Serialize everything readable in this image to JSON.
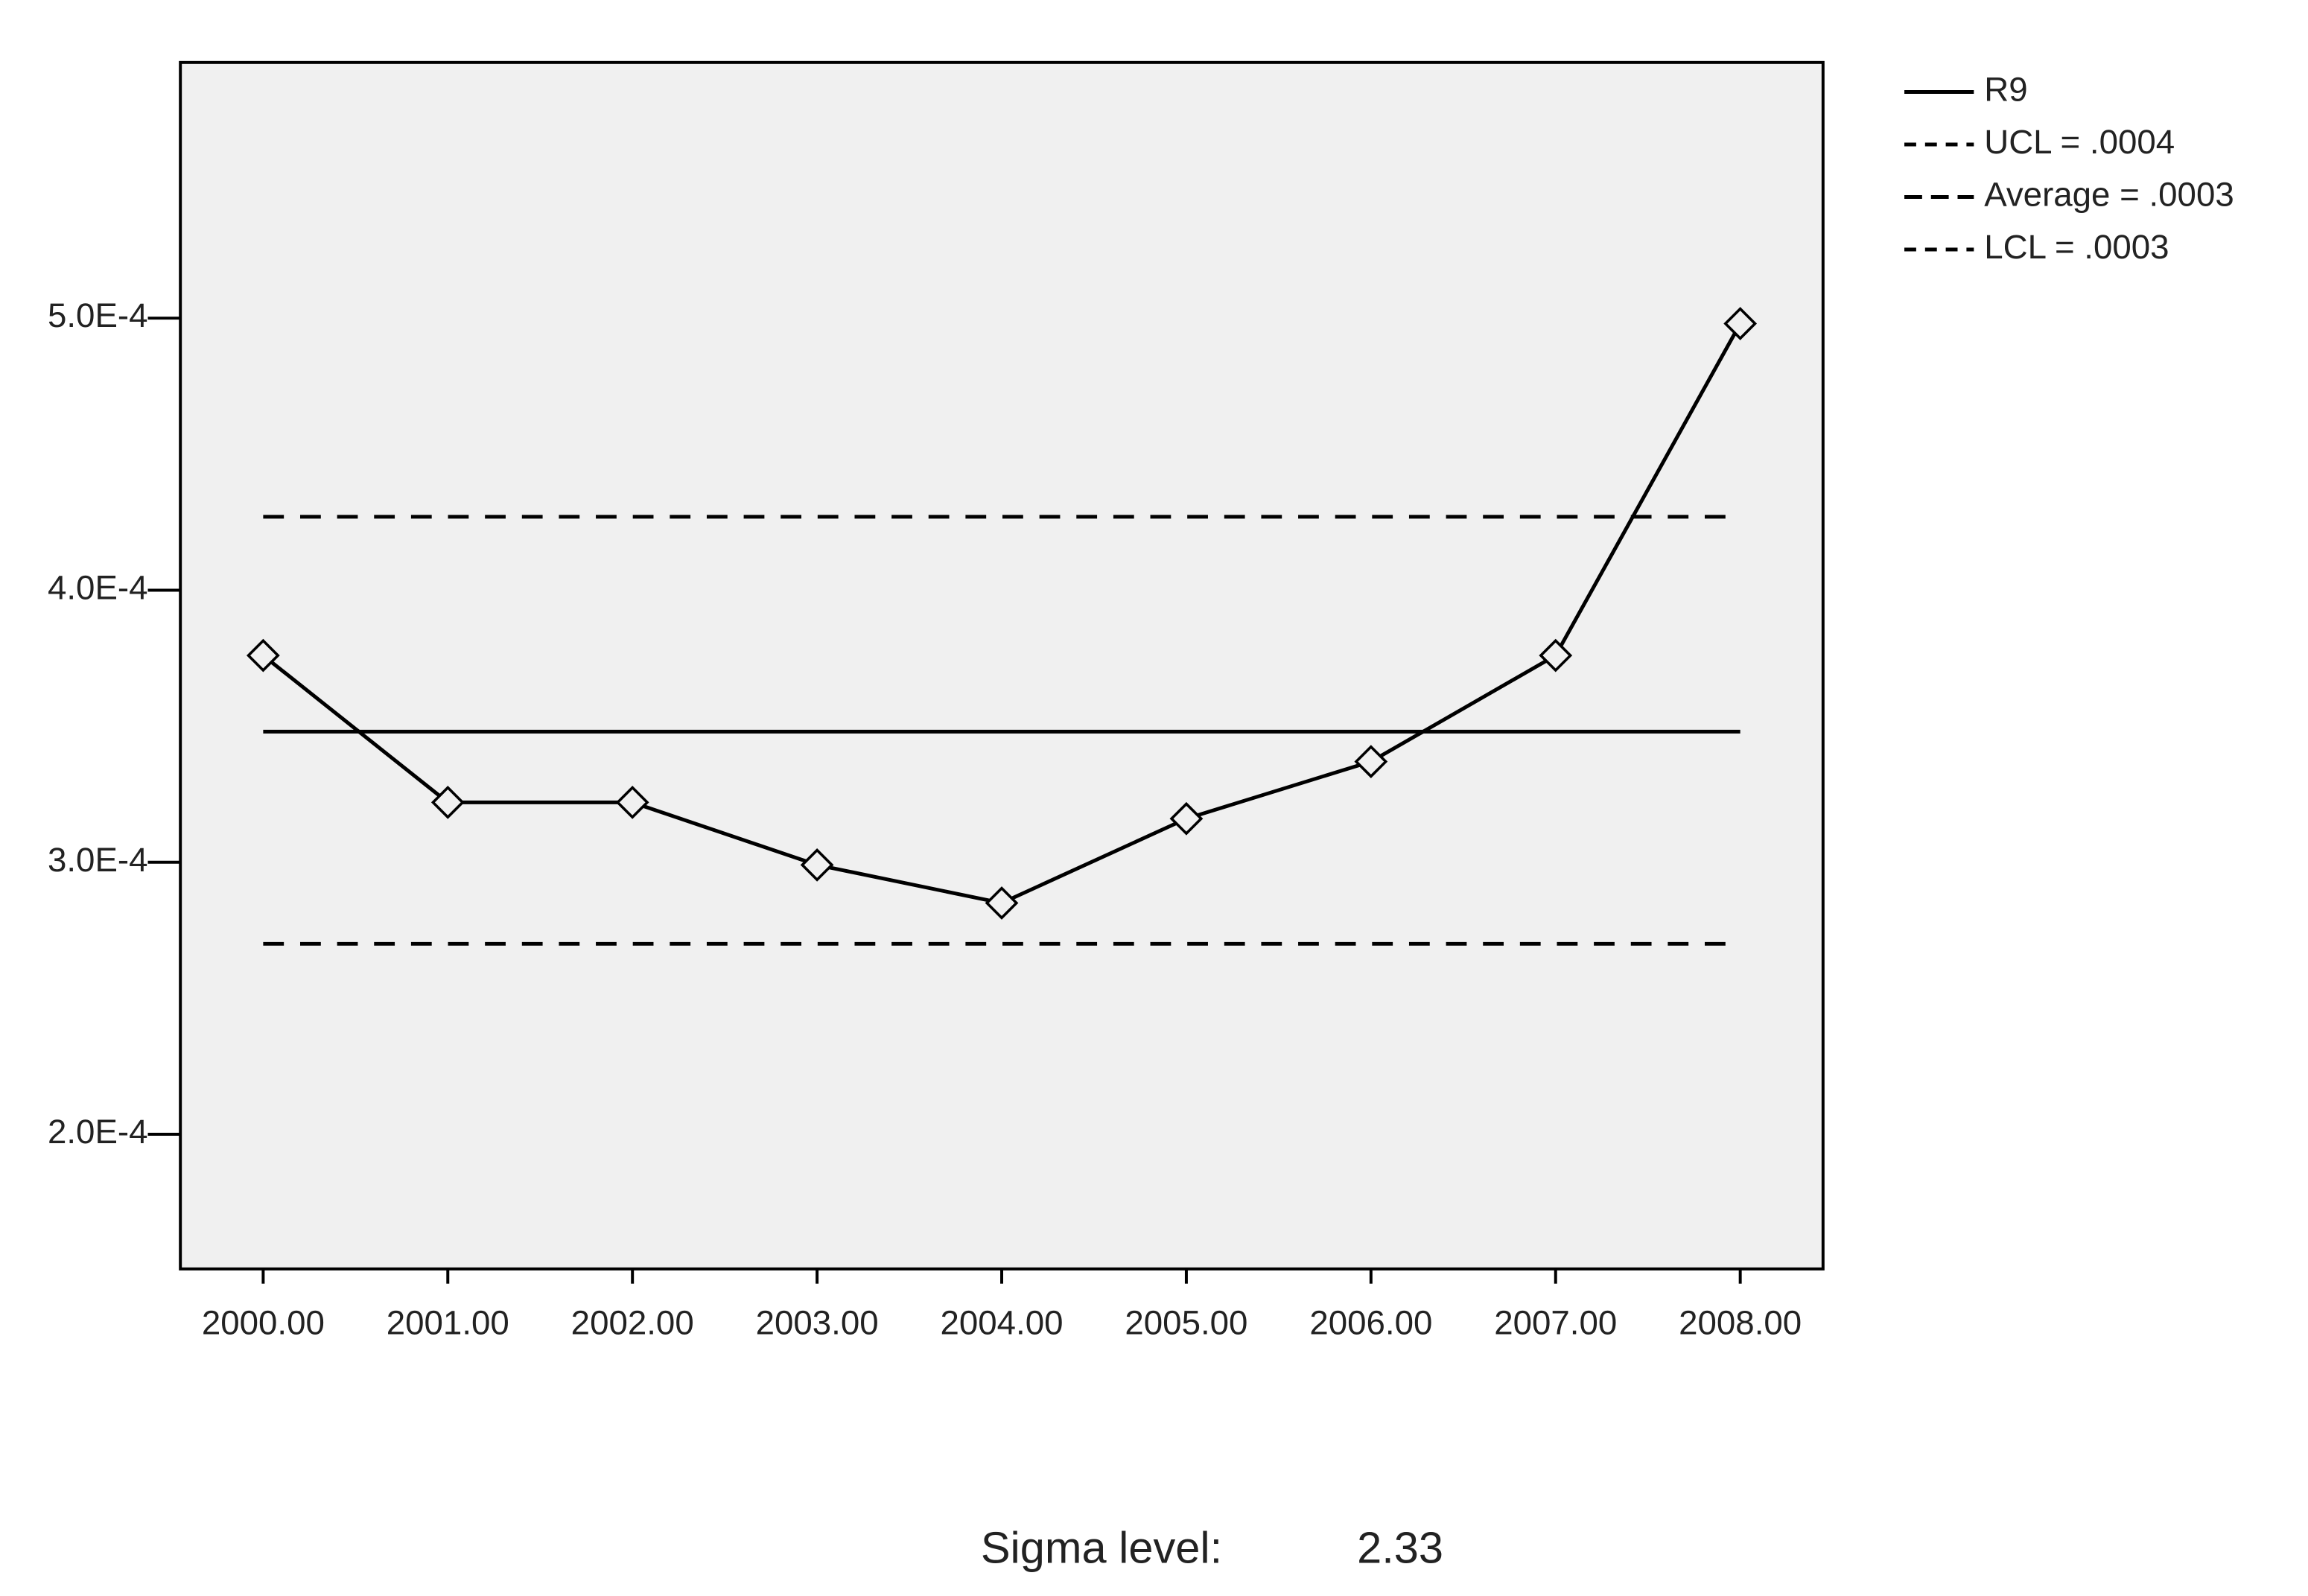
{
  "chart_data": {
    "type": "line",
    "categories": [
      "2000.00",
      "2001.00",
      "2002.00",
      "2003.00",
      "2004.00",
      "2005.00",
      "2006.00",
      "2007.00",
      "2008.00"
    ],
    "series": [
      {
        "name": "R9",
        "color": "#000000",
        "style": "solid",
        "markers": true,
        "values": [
          0.000376,
          0.000322,
          0.000322,
          0.000299,
          0.000285,
          0.000316,
          0.000337,
          0.000376,
          0.000498
        ]
      },
      {
        "name": "UCL = .0004",
        "color": "#000000",
        "style": "dashed",
        "markers": false,
        "values": [
          0.000427,
          0.000427,
          0.000427,
          0.000427,
          0.000427,
          0.000427,
          0.000427,
          0.000427,
          0.000427
        ]
      },
      {
        "name": "Average = .0003",
        "color": "#000000",
        "style": "solid",
        "markers": false,
        "values": [
          0.000348,
          0.000348,
          0.000348,
          0.000348,
          0.000348,
          0.000348,
          0.000348,
          0.000348,
          0.000348
        ]
      },
      {
        "name": "LCL = .0003",
        "color": "#000000",
        "style": "dashed",
        "markers": false,
        "values": [
          0.00027,
          0.00027,
          0.00027,
          0.00027,
          0.00027,
          0.00027,
          0.00027,
          0.00027,
          0.00027
        ]
      }
    ],
    "ylim": [
      0.0001505,
      0.000594
    ],
    "yticks": [
      {
        "value": 0.0002,
        "label": "2.0E-4"
      },
      {
        "value": 0.0003,
        "label": "3.0E-4"
      },
      {
        "value": 0.0004,
        "label": "4.0E-4"
      },
      {
        "value": 0.0005,
        "label": "5.0E-4"
      }
    ],
    "grid": false,
    "legend": "right",
    "sigma_label": "Sigma level:",
    "sigma_value": 2.33
  }
}
